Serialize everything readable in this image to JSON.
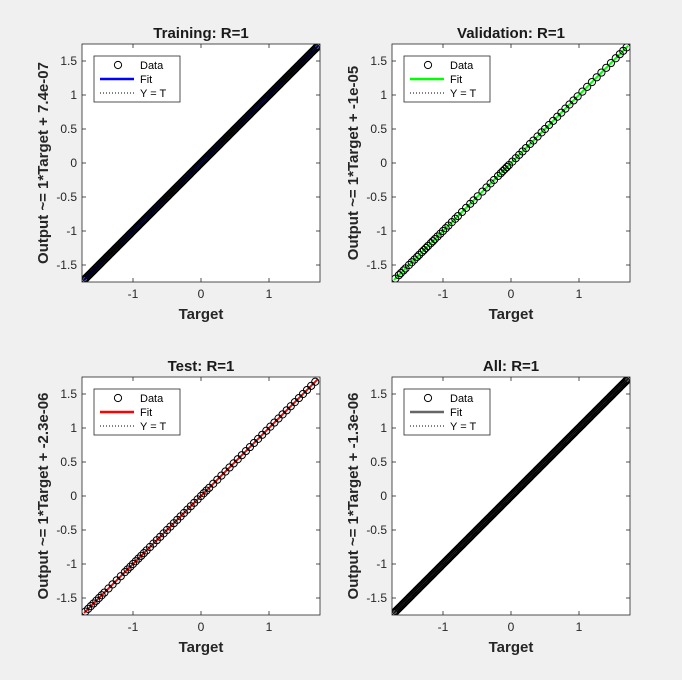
{
  "chart_data": [
    {
      "type": "scatter",
      "title": "Training: R=1",
      "xlabel": "Target",
      "ylabel": "Output ~= 1*Target + 7.4e-07",
      "xlim": [
        -1.75,
        1.75
      ],
      "ylim": [
        -1.75,
        1.75
      ],
      "xticks": [
        "-1",
        "0",
        "1"
      ],
      "yticks": [
        "-1.5",
        "-1",
        "-0.5",
        "0",
        "0.5",
        "1",
        "1.5"
      ],
      "fit": {
        "slope": 1,
        "intercept": 7.4e-07
      },
      "legend": [
        "Data",
        "Fit",
        "Y = T"
      ],
      "legend_position": "top-left",
      "fit_color": "#0000ff",
      "marker_fill": "none",
      "x_range": [
        -1.72,
        1.72
      ],
      "density": "dense"
    },
    {
      "type": "scatter",
      "title": "Validation: R=1",
      "xlabel": "Target",
      "ylabel": "Output ~= 1*Target + -1e-05",
      "xlim": [
        -1.75,
        1.75
      ],
      "ylim": [
        -1.75,
        1.75
      ],
      "xticks": [
        "-1",
        "0",
        "1"
      ],
      "yticks": [
        "-1.5",
        "-1",
        "-0.5",
        "0",
        "0.5",
        "1",
        "1.5"
      ],
      "fit": {
        "slope": 1,
        "intercept": -1e-05
      },
      "legend": [
        "Data",
        "Fit",
        "Y = T"
      ],
      "legend_position": "top-left",
      "fit_color": "#00ff00",
      "marker_fill": "none",
      "x_range": [
        -1.72,
        1.72
      ],
      "density": "sparse",
      "x_values": [
        -1.7,
        -1.65,
        -1.62,
        -1.58,
        -1.55,
        -1.5,
        -1.46,
        -1.42,
        -1.38,
        -1.35,
        -1.31,
        -1.28,
        -1.25,
        -1.22,
        -1.18,
        -1.15,
        -1.12,
        -1.08,
        -1.04,
        -1.0,
        -0.96,
        -0.92,
        -0.87,
        -0.82,
        -0.78,
        -0.72,
        -0.66,
        -0.6,
        -0.55,
        -0.49,
        -0.42,
        -0.36,
        -0.3,
        -0.25,
        -0.19,
        -0.15,
        -0.12,
        -0.09,
        -0.06,
        -0.03,
        0.02,
        0.07,
        0.12,
        0.17,
        0.22,
        0.28,
        0.33,
        0.39,
        0.45,
        0.5,
        0.56,
        0.62,
        0.68,
        0.74,
        0.8,
        0.86,
        0.92,
        0.98,
        1.05,
        1.12,
        1.19,
        1.26,
        1.33,
        1.4,
        1.47,
        1.54,
        1.6,
        1.65,
        1.7
      ]
    },
    {
      "type": "scatter",
      "title": "Test: R=1",
      "xlabel": "Target",
      "ylabel": "Output ~= 1*Target + -2.3e-06",
      "xlim": [
        -1.75,
        1.75
      ],
      "ylim": [
        -1.75,
        1.75
      ],
      "xticks": [
        "-1",
        "0",
        "1"
      ],
      "yticks": [
        "-1.5",
        "-1",
        "-0.5",
        "0",
        "0.5",
        "1",
        "1.5"
      ],
      "fit": {
        "slope": 1,
        "intercept": -2.3e-06
      },
      "legend": [
        "Data",
        "Fit",
        "Y = T"
      ],
      "legend_position": "top-left",
      "fit_color": "#ff0000",
      "marker_fill": "none",
      "x_range": [
        -1.72,
        1.72
      ],
      "density": "sparse",
      "x_values": [
        -1.7,
        -1.66,
        -1.62,
        -1.58,
        -1.54,
        -1.5,
        -1.46,
        -1.42,
        -1.36,
        -1.3,
        -1.24,
        -1.18,
        -1.12,
        -1.08,
        -1.04,
        -1.0,
        -0.96,
        -0.92,
        -0.88,
        -0.84,
        -0.8,
        -0.75,
        -0.7,
        -0.65,
        -0.6,
        -0.55,
        -0.5,
        -0.45,
        -0.4,
        -0.35,
        -0.3,
        -0.25,
        -0.2,
        -0.15,
        -0.1,
        -0.05,
        0.0,
        0.04,
        0.08,
        0.12,
        0.18,
        0.24,
        0.3,
        0.36,
        0.42,
        0.48,
        0.54,
        0.6,
        0.66,
        0.72,
        0.78,
        0.84,
        0.9,
        0.96,
        1.02,
        1.08,
        1.14,
        1.2,
        1.26,
        1.32,
        1.38,
        1.44,
        1.5,
        1.56,
        1.62,
        1.68
      ]
    },
    {
      "type": "scatter",
      "title": "All: R=1",
      "xlabel": "Target",
      "ylabel": "Output ~= 1*Target + -1.3e-06",
      "xlim": [
        -1.75,
        1.75
      ],
      "ylim": [
        -1.75,
        1.75
      ],
      "xticks": [
        "-1",
        "0",
        "1"
      ],
      "yticks": [
        "-1.5",
        "-1",
        "-0.5",
        "0",
        "0.5",
        "1",
        "1.5"
      ],
      "fit": {
        "slope": 1,
        "intercept": -1.3e-06
      },
      "legend": [
        "Data",
        "Fit",
        "Y = T"
      ],
      "legend_position": "top-left",
      "fit_color": "#666666",
      "marker_fill": "none",
      "x_range": [
        -1.72,
        1.72
      ],
      "density": "dense"
    }
  ]
}
